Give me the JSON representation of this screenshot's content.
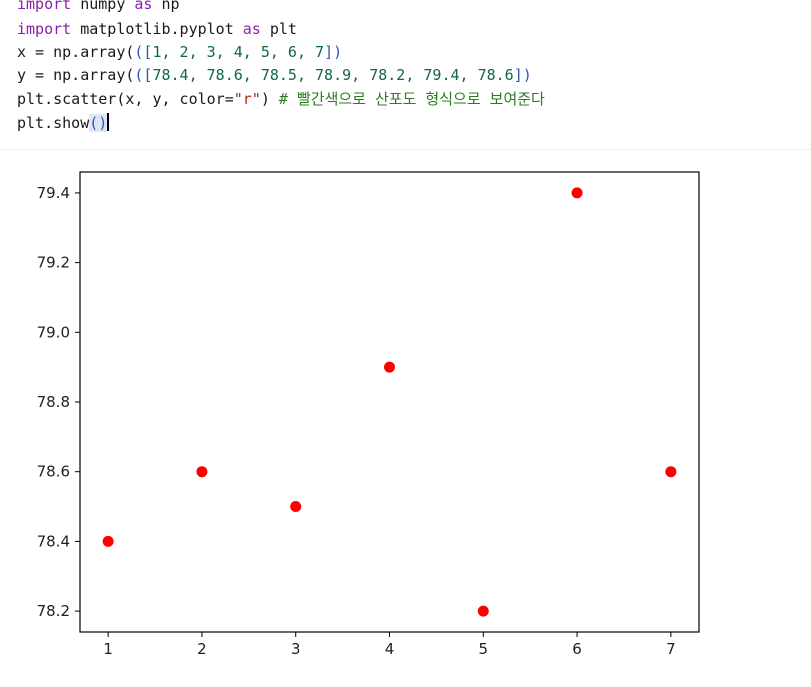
{
  "code": {
    "line1": {
      "kw1": "import",
      "rest1": " numpy ",
      "kw2": "as",
      "rest2": " np"
    },
    "line2": {
      "kw1": "import",
      "rest1": " matplotlib.pyplot ",
      "kw2": "as",
      "rest2": " plt"
    },
    "line3": {
      "pre": "x = np.array(",
      "open": "([",
      "nums": "1, 2, 3, 4, 5, 6, 7",
      "close": "])"
    },
    "line4": {
      "pre": "y = np.array(",
      "open": "([",
      "nums": "78.4, 78.6, 78.5, 78.9, 78.2, 79.4, 78.6",
      "close": "])"
    },
    "line5": {
      "pre": "plt.scatter(x, y, color=",
      "str": "\"r\"",
      "post": ") ",
      "comment": "# 빨간색으로 산포도 형식으로 보여준다"
    },
    "line6": {
      "pre": "plt.show",
      "parens": "()"
    }
  },
  "chart_data": {
    "type": "scatter",
    "x": [
      1,
      2,
      3,
      4,
      5,
      6,
      7
    ],
    "y": [
      78.4,
      78.6,
      78.5,
      78.9,
      78.2,
      79.4,
      78.6
    ],
    "color": "#ff0000",
    "xlim": [
      0.7,
      7.3
    ],
    "ylim": [
      78.14,
      79.46
    ],
    "xticks": [
      "1",
      "2",
      "3",
      "4",
      "5",
      "6",
      "7"
    ],
    "yticks": [
      "78.2",
      "78.4",
      "78.6",
      "78.8",
      "79.0",
      "79.2",
      "79.4"
    ],
    "grid": false,
    "title": "",
    "xlabel": "",
    "ylabel": ""
  }
}
